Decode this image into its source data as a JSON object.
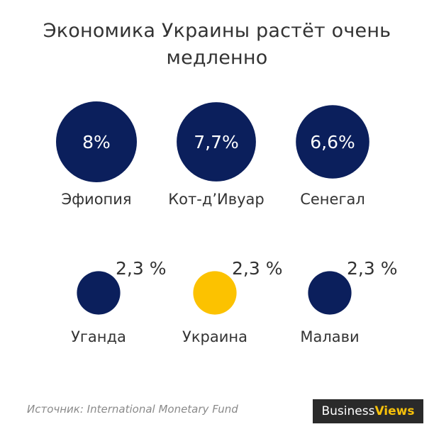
{
  "title_lines": [
    "Экономика Украины растёт очень",
    "медленно"
  ],
  "source": "Источник: International Monetary Fund",
  "logo": {
    "part1": "Business",
    "part2": "Views"
  },
  "colors": {
    "navy": "#0b1f5c",
    "highlight": "#fcc200",
    "text": "#333333"
  },
  "chart_data": {
    "type": "bubble",
    "unit": "%",
    "items": [
      {
        "country": "Эфиопия",
        "value": 8.0,
        "label": "8%",
        "highlight": false
      },
      {
        "country": "Кот-д’Ивуар",
        "value": 7.7,
        "label": "7,7%",
        "highlight": false
      },
      {
        "country": "Сенегал",
        "value": 6.6,
        "label": "6,6%",
        "highlight": false
      },
      {
        "country": "Уганда",
        "value": 2.3,
        "label": "2,3 %",
        "highlight": false
      },
      {
        "country": "Украина",
        "value": 2.3,
        "label": "2,3 %",
        "highlight": true
      },
      {
        "country": "Малави",
        "value": 2.3,
        "label": "2,3 %",
        "highlight": false
      }
    ]
  }
}
